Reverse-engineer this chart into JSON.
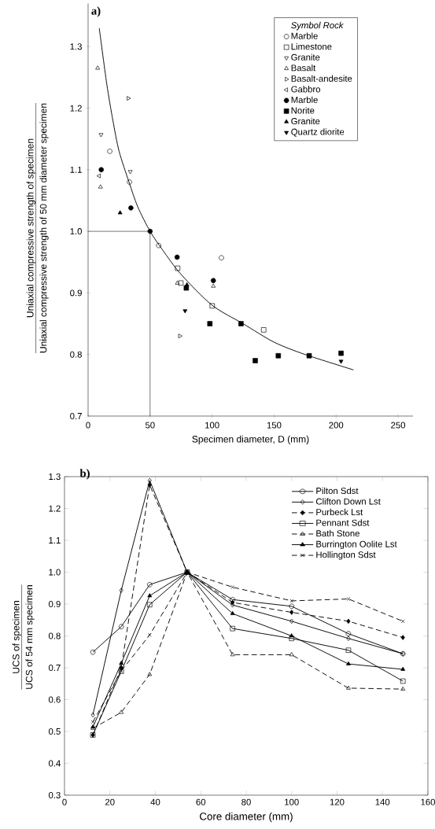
{
  "chart_data": [
    {
      "type": "scatter",
      "xlabel": "Specimen diameter, D (mm)",
      "ylabel": "Uniaxial compressive strength of specimen",
      "legend_title": "Symbol Rock",
      "legend": "top right",
      "annotations": [
        "a)",
        "Uniaxial compressive strength of 50 mm diameter specimen"
      ],
      "xlim": [
        0,
        262
      ],
      "ylim": [
        0.7,
        1.37
      ],
      "xticks": [
        0,
        50,
        100,
        150,
        200,
        250
      ],
      "yticks": [
        0.7,
        0.8,
        0.9,
        {
          "value": 1,
          "label": "1.0"
        },
        1.1,
        1.2,
        1.3
      ],
      "ref_lines": [
        {
          "axis": "y",
          "value": 1.0,
          "color": "#555555"
        },
        {
          "axis": "x",
          "value": 50,
          "color": "#555555"
        }
      ],
      "series": [
        {
          "name": "Marble",
          "color": "#000000",
          "marker": "circle-open",
          "x": [
            17.5,
            33.4,
            56.9,
            107.5
          ],
          "values": [
            1.13,
            1.08,
            0.977,
            0.957
          ]
        },
        {
          "name": "Limestone",
          "color": "#000000",
          "marker": "square-open",
          "x": [
            72.2,
            74.8,
            100.1,
            141.6
          ],
          "values": [
            0.94,
            0.916,
            0.879,
            0.84
          ]
        },
        {
          "name": "Granite",
          "color": "#000000",
          "marker": "triangle-down-open",
          "x": [
            10.4,
            34
          ],
          "values": [
            1.157,
            1.097
          ]
        },
        {
          "name": "Basalt",
          "color": "#000000",
          "marker": "triangle-open",
          "x": [
            7.7,
            10,
            72,
            101
          ],
          "values": [
            1.265,
            1.072,
            0.916,
            0.911
          ]
        },
        {
          "name": "Basalt-andesite",
          "color": "#000000",
          "marker": "triangle-right-open",
          "x": [
            32.4,
            73.9
          ],
          "values": [
            1.216,
            0.83
          ]
        },
        {
          "name": "Gabbro",
          "color": "#000000",
          "marker": "triangle-left-open",
          "x": [
            8.9
          ],
          "values": [
            1.09
          ]
        },
        {
          "name": "Marble",
          "color": "#000000",
          "marker": "circle",
          "x": [
            10.6,
            34.5,
            50,
            71.8,
            101
          ],
          "values": [
            1.1,
            1.038,
            1.0,
            0.958,
            0.92
          ]
        },
        {
          "name": "Norite",
          "color": "#000000",
          "marker": "square",
          "x": [
            79.2,
            98.2,
            123.3,
            134.8,
            153.4,
            178.3,
            204
          ],
          "values": [
            0.908,
            0.85,
            0.85,
            0.79,
            0.798,
            0.798,
            0.802
          ]
        },
        {
          "name": "Granite",
          "color": "#000000",
          "marker": "triangle",
          "x": [
            25.8,
            79.7
          ],
          "values": [
            1.03,
            0.913
          ]
        },
        {
          "name": "Quartz diorite",
          "color": "#000000",
          "marker": "triangle-down",
          "x": [
            78.2,
            204
          ],
          "values": [
            0.871,
            0.789
          ]
        },
        {
          "type": "line",
          "color": "#000000",
          "marker": "none",
          "x": [
            9,
            15,
            20,
            25,
            33,
            40,
            50,
            60,
            75,
            100,
            125,
            150,
            175,
            214
          ],
          "values": [
            1.33,
            1.24,
            1.18,
            1.13,
            1.08,
            1.04,
            1.0,
            0.97,
            0.93,
            0.88,
            0.85,
            0.82,
            0.8,
            0.775
          ]
        }
      ]
    },
    {
      "type": "line",
      "xlabel": "Core diameter (mm)",
      "ylabel": "UCS of specimen",
      "legend": "top right",
      "annotations": [
        "b)",
        "UCS of 54 mm specimen"
      ],
      "xlim": [
        0,
        160
      ],
      "ylim": [
        0.3,
        1.3
      ],
      "xticks": [
        0,
        20,
        40,
        60,
        80,
        100,
        120,
        140,
        160
      ],
      "yticks": [
        0.3,
        0.4,
        0.5,
        0.6,
        0.7,
        0.8,
        0.9,
        {
          "value": 1,
          "label": "1.0"
        },
        1.1,
        1.2,
        1.3
      ],
      "x": [
        12.5,
        25,
        37.5,
        54,
        74,
        100,
        125,
        149
      ],
      "series": [
        {
          "name": "Pilton Sdst",
          "color": "#000000",
          "marker": "circle-open",
          "line_style": "solid",
          "values": [
            0.749,
            0.829,
            0.961,
            1.0,
            0.914,
            0.893,
            0.807,
            0.744
          ]
        },
        {
          "name": "Clifton Down Lst",
          "color": "#000000",
          "marker": "diamond-open",
          "line_style": "solid",
          "values": [
            0.552,
            0.943,
            1.288,
            1.0,
            0.897,
            0.846,
            0.792,
            0.744
          ]
        },
        {
          "name": "Purbeck Lst",
          "color": "#000000",
          "marker": "diamond",
          "line_style": "dashed",
          "values": [
            0.489,
            0.7,
            1.274,
            1.0,
            0.905,
            0.874,
            0.846,
            0.795
          ]
        },
        {
          "name": "Pennant Sdst",
          "color": "#000000",
          "marker": "square-open",
          "line_style": "solid",
          "values": [
            0.489,
            0.689,
            0.898,
            1.0,
            0.823,
            0.792,
            0.755,
            0.658
          ]
        },
        {
          "name": "Bath Stone",
          "color": "#000000",
          "marker": "triangle-open",
          "line_style": "dashed",
          "values": [
            0.51,
            0.56,
            0.679,
            1.0,
            0.741,
            0.741,
            0.636,
            0.633
          ]
        },
        {
          "name": "Burrington Oolite Lst",
          "color": "#000000",
          "marker": "triangle",
          "line_style": "solid",
          "values": [
            0.514,
            0.714,
            0.926,
            1.0,
            0.87,
            0.8,
            0.712,
            0.695
          ]
        },
        {
          "name": "Hollington Sdst",
          "color": "#000000",
          "marker": "cross",
          "line_style": "dashed",
          "values": [
            0.53,
            0.69,
            0.803,
            1.0,
            0.953,
            0.91,
            0.916,
            0.846
          ]
        }
      ]
    }
  ]
}
